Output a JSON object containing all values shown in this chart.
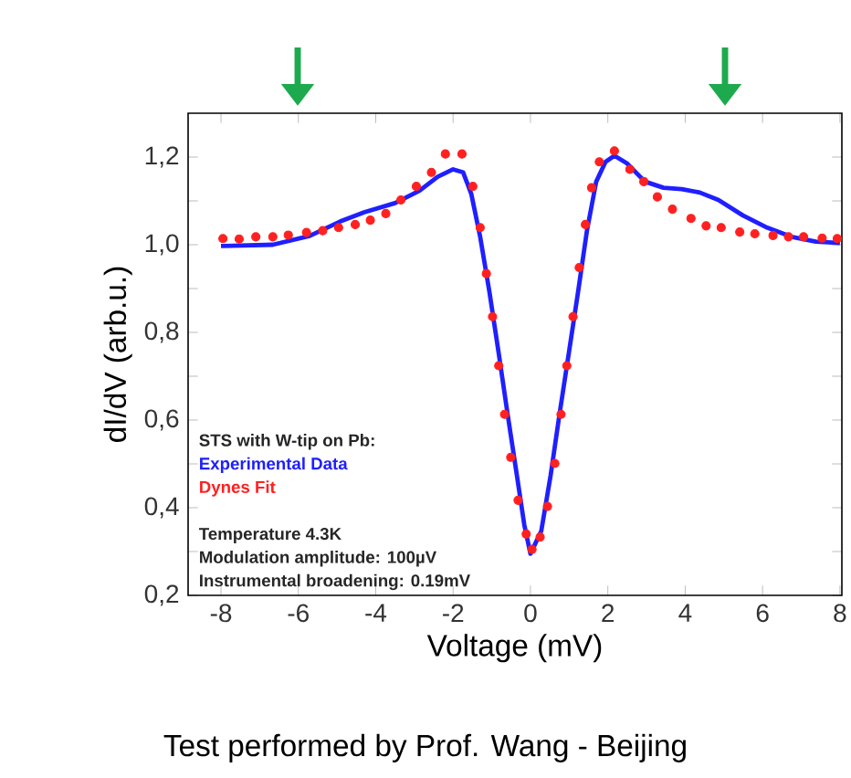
{
  "chart_data": {
    "type": "line",
    "xlabel": "Voltage (mV)",
    "ylabel": "dI/dV (arb.u.)",
    "legend_title": "STS with W-tip on Pb:",
    "legend": "bottom left",
    "xlim": [
      -8.85,
      8.05
    ],
    "ylim": [
      0.2,
      1.3
    ],
    "xticks": [
      -8,
      -6,
      -4,
      -2,
      0,
      2,
      4,
      6,
      8
    ],
    "yticks": [
      {
        "value": 0.2,
        "label": "0,2"
      },
      {
        "value": 0.3,
        "label": null
      },
      {
        "value": 0.4,
        "label": "0,4"
      },
      {
        "value": 0.5,
        "label": null
      },
      {
        "value": 0.6,
        "label": "0,6"
      },
      {
        "value": 0.7,
        "label": null
      },
      {
        "value": 0.8,
        "label": "0,8"
      },
      {
        "value": 0.9,
        "label": null
      },
      {
        "value": 1.0,
        "label": "1,0"
      },
      {
        "value": 1.1,
        "label": null
      },
      {
        "value": 1.2,
        "label": "1,2"
      }
    ],
    "series": [
      {
        "name": "Experimental Data",
        "color": "#1f1fff",
        "x": [
          -8,
          -6.66,
          -5.71,
          -4.92,
          -4.3,
          -3.5,
          -2.87,
          -2.4,
          -2.0,
          -1.74,
          -1.53,
          -1.3,
          -1.06,
          -0.82,
          -0.59,
          -0.35,
          -0.16,
          0,
          0.28,
          0.52,
          0.75,
          0.99,
          1.23,
          1.46,
          1.7,
          1.94,
          2.17,
          2.49,
          2.96,
          3.44,
          3.91,
          4.38,
          4.86,
          5.49,
          6.12,
          6.75,
          7.38,
          8.0
        ],
        "values": [
          0.997,
          1.0,
          1.02,
          1.053,
          1.074,
          1.095,
          1.123,
          1.155,
          1.172,
          1.165,
          1.116,
          1.018,
          0.892,
          0.752,
          0.613,
          0.473,
          0.361,
          0.295,
          0.347,
          0.473,
          0.613,
          0.752,
          0.892,
          1.032,
          1.144,
          1.189,
          1.203,
          1.186,
          1.144,
          1.13,
          1.127,
          1.119,
          1.102,
          1.067,
          1.039,
          1.018,
          1.007,
          1.004
        ]
      },
      {
        "name": "Dynes Fit",
        "type": "scatter",
        "color": "#ff2020",
        "x": [
          -7.95,
          -7.53,
          -7.1,
          -6.66,
          -6.26,
          -5.79,
          -5.37,
          -4.96,
          -4.53,
          -4.14,
          -3.74,
          -3.35,
          -2.95,
          -2.56,
          -2.2,
          -1.77,
          -1.49,
          -1.3,
          -1.14,
          -0.98,
          -0.82,
          -0.67,
          -0.51,
          -0.32,
          -0.11,
          0.04,
          0.25,
          0.44,
          0.63,
          0.79,
          0.94,
          1.1,
          1.26,
          1.42,
          1.58,
          1.78,
          2.17,
          2.57,
          2.93,
          3.28,
          3.67,
          4.15,
          4.54,
          4.93,
          5.41,
          5.8,
          6.27,
          6.67,
          7.06,
          7.54,
          7.93
        ],
        "values": [
          1.014,
          1.013,
          1.018,
          1.018,
          1.022,
          1.028,
          1.032,
          1.039,
          1.046,
          1.056,
          1.071,
          1.102,
          1.133,
          1.165,
          1.207,
          1.207,
          1.133,
          1.039,
          0.934,
          0.836,
          0.724,
          0.613,
          0.515,
          0.417,
          0.34,
          0.305,
          0.333,
          0.403,
          0.501,
          0.613,
          0.724,
          0.836,
          0.948,
          1.046,
          1.13,
          1.189,
          1.214,
          1.172,
          1.144,
          1.109,
          1.081,
          1.06,
          1.043,
          1.039,
          1.029,
          1.025,
          1.021,
          1.018,
          1.018,
          1.015,
          1.014
        ]
      }
    ],
    "annotations": [
      "Temperature 4.3K",
      "Modulation amplitude: 100µV",
      "Instrumental broadening: 0.19mV",
      "Test performed by Prof. Wang - Beijing"
    ]
  }
}
